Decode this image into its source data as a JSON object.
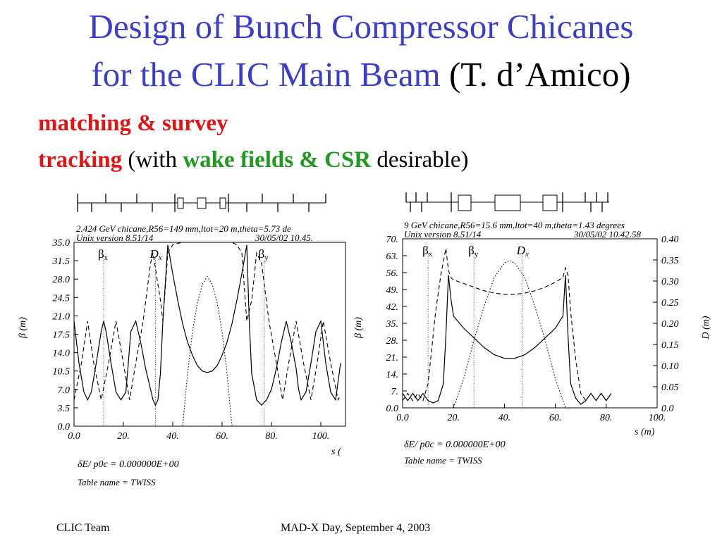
{
  "slide": {
    "title_line1": "Design of Bunch Compressor Chicanes",
    "title_line2": "for the CLIC Main Beam",
    "author": "(T. d’Amico)",
    "bullet1": "matching & survey",
    "bullet2_red": "tracking",
    "bullet2_open": "(with",
    "bullet2_green": "wake fields & CSR",
    "bullet2_close": "desirable)",
    "footer_left": "CLIC Team",
    "footer_center": "MAD-X Day, September 4, 2003"
  },
  "colors": {
    "title": "#3a3ec8",
    "highlight_red": "#e01515",
    "highlight_green": "#1f9a1f"
  },
  "chart_data": [
    {
      "type": "line",
      "header_line1": "2.424 GeV chicane,R56=149 mm,ltot=20 m,theta=5.73 de",
      "header_line2_left": "Unix version 8.51/14",
      "header_line2_right": "30/05/02  10.45.",
      "ylabel": "β (m)",
      "xlabel": "s (",
      "xlim": [
        0,
        110
      ],
      "ylim": [
        0,
        35
      ],
      "x_ticks": [
        "0.0",
        "20.",
        "40.",
        "60.",
        "80.",
        "100."
      ],
      "y_ticks": [
        "0.0",
        "3.5",
        "7.0",
        "10.5",
        "14.0",
        "17.5",
        "21.0",
        "24.5",
        "28.0",
        "31.5",
        "35.0"
      ],
      "curve_labels": [
        "βx",
        "Dx",
        "βy"
      ],
      "footer_line1": "δE/ p0c  =  0.000000E+00",
      "footer_line2": "Table name = TWISS",
      "series": [
        {
          "style": "solid",
          "x": [
            0,
            2,
            4,
            5.5,
            7,
            9,
            11,
            12,
            13,
            15,
            17,
            19,
            21,
            22,
            23,
            25,
            27,
            29,
            31,
            32,
            33,
            34,
            35,
            36,
            38,
            40,
            42,
            44,
            46,
            48,
            50,
            52,
            54,
            56,
            58,
            60,
            62,
            64,
            66,
            68,
            70,
            71,
            72,
            74,
            76,
            78,
            80,
            82,
            84,
            86,
            88,
            90,
            91,
            92,
            94,
            96,
            98,
            100,
            102,
            104,
            106,
            108
          ],
          "y": [
            20,
            12,
            6.5,
            5,
            6.5,
            12,
            18,
            20,
            18,
            12,
            6.5,
            5,
            6.5,
            12,
            18,
            20,
            16,
            11,
            7,
            5,
            4,
            5,
            10,
            20,
            34.5,
            29,
            24,
            19.5,
            16,
            13.5,
            11.5,
            10.5,
            10.2,
            10.5,
            11.5,
            13.5,
            16,
            19.5,
            24,
            29,
            34.5,
            20,
            10,
            5,
            4,
            5,
            7,
            11,
            16,
            20,
            16,
            11,
            7,
            5,
            6.5,
            12,
            18,
            20,
            12,
            6.5,
            5,
            12
          ]
        },
        {
          "style": "dashed",
          "x": [
            0,
            3,
            5.5,
            8,
            11,
            14,
            17,
            20,
            22.5,
            25,
            28,
            31,
            32,
            35,
            36,
            38,
            40,
            42,
            44,
            46,
            48,
            50,
            52,
            54,
            56,
            58,
            60,
            62,
            64,
            66,
            68,
            70,
            72,
            74,
            76,
            79,
            82,
            84.5,
            87,
            90,
            93,
            96,
            98.5,
            101,
            104,
            107,
            108
          ],
          "y": [
            5,
            12,
            20,
            12,
            5,
            12,
            20,
            12,
            5,
            12,
            20,
            31,
            33,
            24,
            20,
            33,
            34.5,
            34.8,
            35,
            35,
            35,
            35,
            35,
            35,
            35,
            35,
            35,
            35,
            35,
            34.5,
            33,
            20,
            24,
            33,
            31,
            20,
            12,
            5,
            12,
            20,
            12,
            5,
            12,
            20,
            12,
            5,
            6
          ]
        },
        {
          "style": "dotted",
          "x": [
            44,
            45,
            46,
            48,
            50,
            52,
            54,
            56,
            58,
            60,
            62,
            63,
            64
          ],
          "y": [
            0,
            5,
            10,
            18,
            23.5,
            27,
            28.5,
            27,
            23.5,
            18,
            10,
            5,
            0
          ]
        }
      ]
    },
    {
      "type": "line",
      "header_line1": "9 GeV chicane,R56=15.6 mm,ltot=40 m,theta=1.43 degrees",
      "header_line2_left": "Unix version 8.51/14",
      "header_line2_right": "30/05/02  10.42.58",
      "ylabel": "β (m)",
      "y2label": "D (m)",
      "xlabel": "s (m)",
      "xlim": [
        0,
        100
      ],
      "ylim": [
        0,
        70
      ],
      "y2lim": [
        0,
        0.4
      ],
      "x_ticks": [
        "0.0",
        "20.",
        "40.",
        "60.",
        "80.",
        "100."
      ],
      "y_ticks": [
        "0.0",
        "7.",
        "14.",
        "21.",
        "28.",
        "35.",
        "42.",
        "49.",
        "56.",
        "63.",
        "70."
      ],
      "y2_ticks": [
        "0.0",
        "0.05",
        "0.10",
        "0.15",
        "0.20",
        "0.25",
        "0.30",
        "0.35",
        "0.40"
      ],
      "curve_labels": [
        "βx",
        "βy",
        "Dx"
      ],
      "footer_line1": "δE/ p0c  =  0.000000E+00",
      "footer_line2": "Table name = TWISS",
      "series": [
        {
          "style": "solid",
          "x": [
            0,
            2,
            4,
            6,
            8,
            10,
            12,
            14,
            16,
            17,
            18,
            19,
            20,
            24,
            28,
            32,
            36,
            40,
            44,
            48,
            52,
            56,
            60,
            63,
            64,
            65,
            66,
            68,
            70,
            72,
            74,
            76,
            78,
            80,
            82
          ],
          "y": [
            6,
            3,
            6,
            3,
            6,
            3,
            2,
            3,
            10,
            30,
            55,
            45,
            38,
            33,
            29,
            25,
            22,
            20.5,
            20.5,
            22,
            25,
            29,
            33,
            38,
            55,
            30,
            10,
            4,
            1.5,
            3,
            6,
            3,
            6,
            3,
            6
          ]
        },
        {
          "style": "dashed",
          "x": [
            0,
            2,
            4,
            6,
            8,
            10,
            13,
            15,
            17,
            18,
            19,
            20,
            24,
            28,
            32,
            36,
            40,
            44,
            48,
            52,
            56,
            60,
            63,
            64,
            65,
            66,
            68,
            70,
            72,
            74,
            76,
            78,
            80,
            82
          ],
          "y": [
            3,
            6,
            3,
            6,
            3,
            10,
            40,
            55,
            66,
            57,
            54,
            53,
            51.5,
            50,
            48.5,
            47.5,
            47,
            47,
            47.5,
            48.5,
            50,
            52,
            54,
            58,
            55,
            40,
            20,
            6,
            3,
            6,
            3,
            6,
            3,
            6
          ]
        },
        {
          "style": "dotted",
          "x": [
            20,
            24,
            28,
            32,
            36,
            40,
            42,
            44,
            48,
            52,
            56,
            60,
            64
          ],
          "y": [
            0,
            12,
            28,
            42,
            54,
            60,
            61,
            60,
            54,
            42,
            28,
            12,
            0
          ]
        }
      ]
    }
  ]
}
